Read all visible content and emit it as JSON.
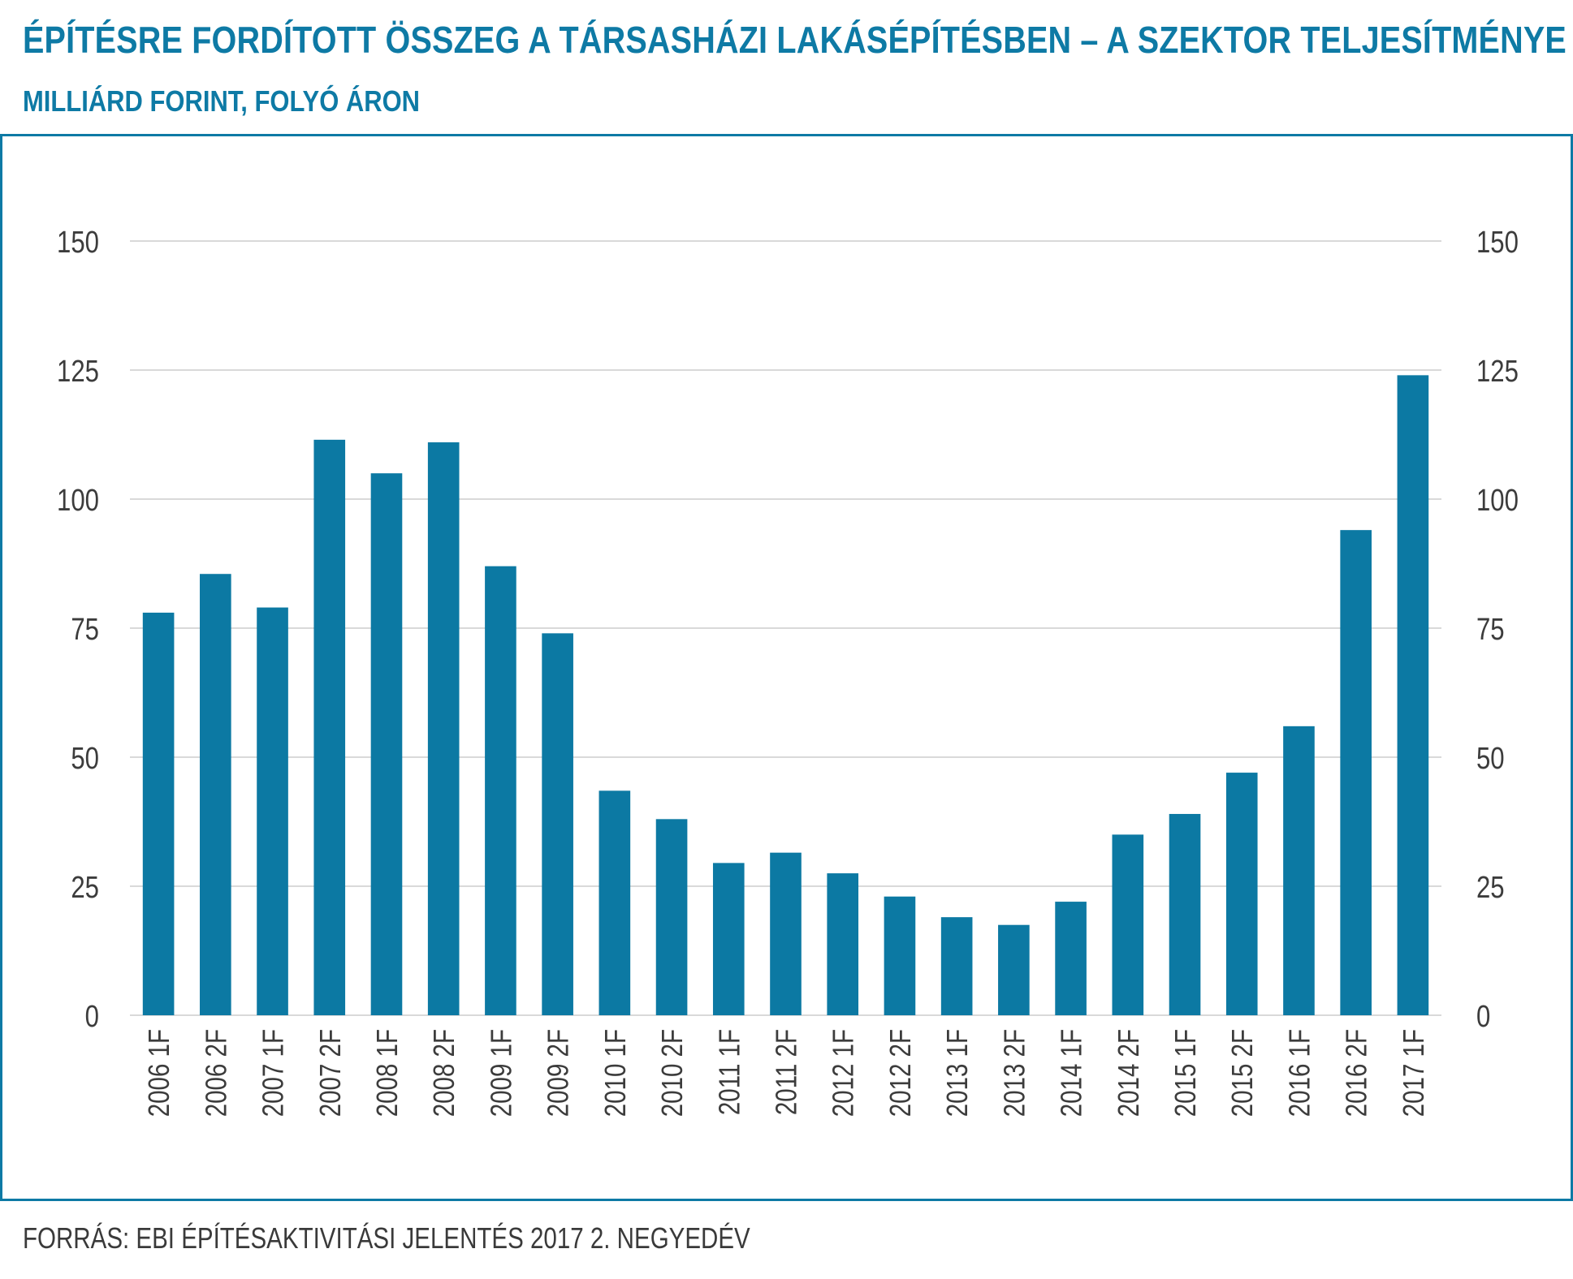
{
  "header": {
    "title": "ÉPÍTÉSRE FORDÍTOTT ÖSSZEG A TÁRSASHÁZI LAKÁSÉPÍTÉSBEN – A SZEKTOR TELJESÍTMÉNYE",
    "subtitle": "MILLIÁRD FORINT, FOLYÓ ÁRON"
  },
  "footer": {
    "source": "FORRÁS: EBI ÉPÍTÉSAKTIVITÁSI JELENTÉS 2017 2. NEGYEDÉV"
  },
  "colors": {
    "accent": "#0e7aa5",
    "bar": "#0c79a3",
    "grid": "#d9d9d9",
    "axis_text": "#3c3c3c"
  },
  "chart_data": {
    "type": "bar",
    "title": "ÉPÍTÉSRE FORDÍTOTT ÖSSZEG A TÁRSASHÁZI LAKÁSÉPÍTÉSBEN – A SZEKTOR TELJESÍTMÉNYE",
    "subtitle": "MILLIÁRD FORINT, FOLYÓ ÁRON",
    "xlabel": "",
    "ylabel": "",
    "ylim": [
      0,
      150
    ],
    "yticks": [
      0,
      25,
      50,
      75,
      100,
      125,
      150
    ],
    "ytick_labels": [
      "0",
      "25",
      "50",
      "75",
      "100",
      "125",
      "150"
    ],
    "secondary_axis": true,
    "grid": true,
    "categories": [
      "2006 1F",
      "2006 2F",
      "2007 1F",
      "2007 2F",
      "2008 1F",
      "2008 2F",
      "2009 1F",
      "2009 2F",
      "2010 1F",
      "2010 2F",
      "2011 1F",
      "2011 2F",
      "2012 1F",
      "2012 2F",
      "2013 1F",
      "2013 2F",
      "2014 1F",
      "2014 2F",
      "2015 1F",
      "2015 2F",
      "2016 1F",
      "2016 2F",
      "2017 1F"
    ],
    "values": [
      78,
      85.5,
      79,
      111.5,
      105,
      111,
      87,
      74,
      43.5,
      38,
      29.5,
      31.5,
      27.5,
      23,
      19,
      17.5,
      22,
      35,
      39,
      47,
      56,
      94,
      124
    ]
  }
}
